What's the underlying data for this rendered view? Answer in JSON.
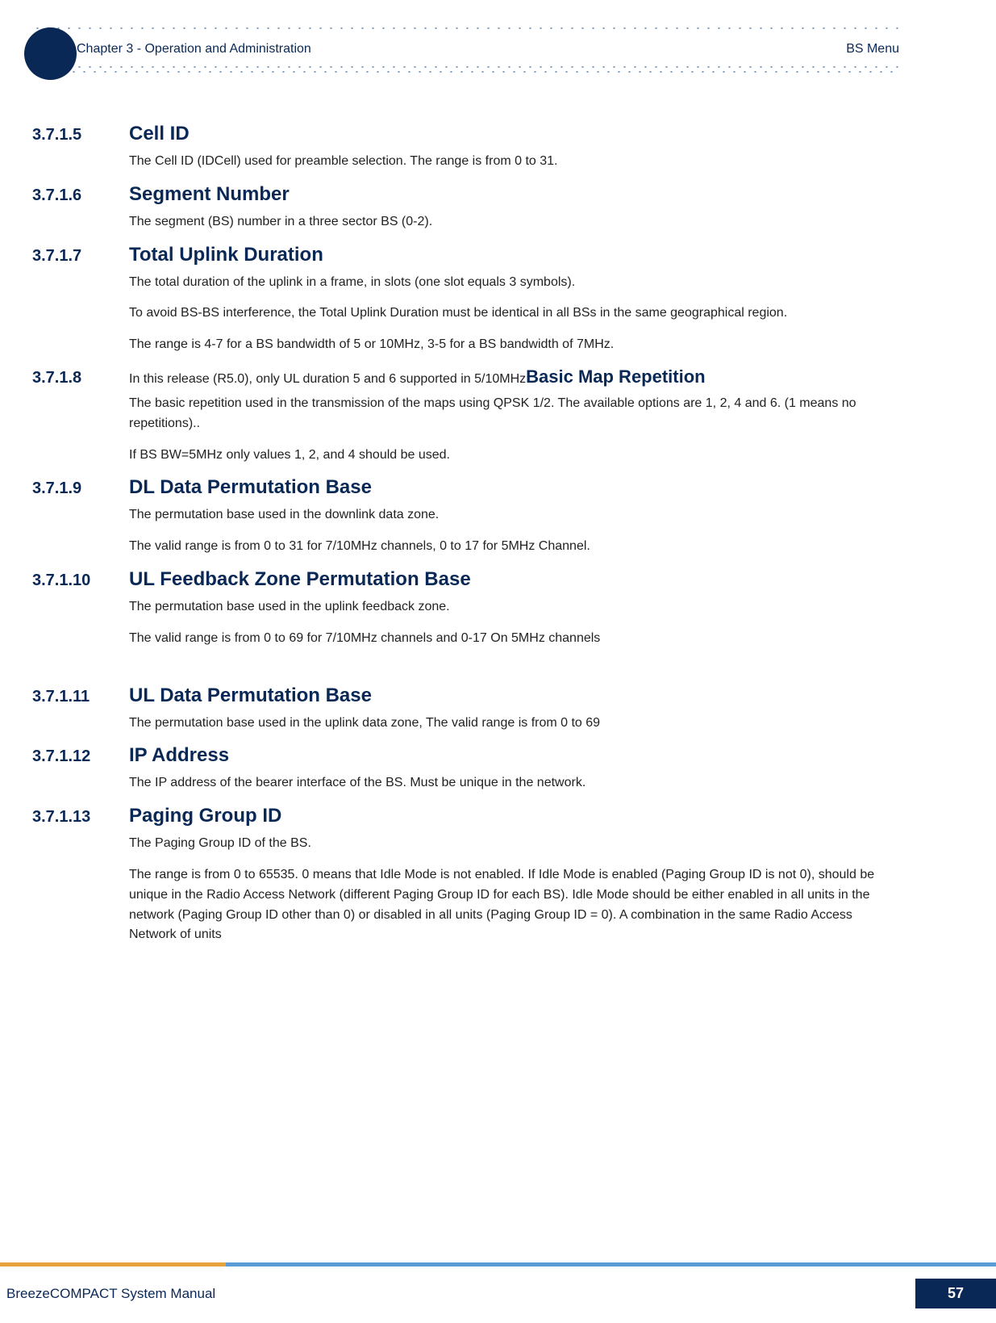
{
  "header": {
    "chapter": "Chapter 3 - Operation and Administration",
    "menu": "BS Menu"
  },
  "sections": {
    "s1": {
      "num": "3.7.1.5",
      "title": "Cell ID",
      "p1": "The Cell ID (IDCell) used for preamble selection. The range is from 0 to 31."
    },
    "s2": {
      "num": "3.7.1.6",
      "title": "Segment Number",
      "p1": "The segment (BS) number in a three sector BS (0-2)."
    },
    "s3": {
      "num": "3.7.1.7",
      "title": "Total Uplink Duration",
      "p1": "The total duration of the uplink in a frame, in slots (one slot equals 3 symbols).",
      "p2": "To avoid BS-BS interference, the Total Uplink Duration must be identical in all BSs in the same geographical region.",
      "p3": "The range is 4-7 for a BS bandwidth of 5 or 10MHz, 3-5 for a BS bandwidth of 7MHz."
    },
    "s4": {
      "num": "3.7.1.8",
      "inline_text": "In this release (R5.0), only UL duration 5 and 6 supported in 5/10MHz",
      "inline_title": "Basic Map Repetition",
      "p1": "The basic repetition used in the transmission of the maps using QPSK 1/2. The available options are 1, 2, 4 and 6. (1 means no repetitions)..",
      "p2": "If BS BW=5MHz only values 1, 2, and 4 should be used."
    },
    "s5": {
      "num": "3.7.1.9",
      "title": "DL Data Permutation Base",
      "p1": "The permutation base used in the downlink data zone.",
      "p2": "The valid range is from 0 to 31 for 7/10MHz channels, 0 to 17 for 5MHz Channel."
    },
    "s6": {
      "num": "3.7.1.10",
      "title": "UL Feedback Zone Permutation Base",
      "p1": "The permutation base used in the uplink feedback zone.",
      "p2": "The valid range is from 0 to 69 for 7/10MHz channels and 0-17 On 5MHz channels"
    },
    "s7": {
      "num": "3.7.1.11",
      "title": "UL Data Permutation Base",
      "p1": "The permutation base used in the uplink data zone, The valid range is from 0 to 69"
    },
    "s8": {
      "num": "3.7.1.12",
      "title": "IP Address",
      "p1": "The IP address of the bearer interface of the BS. Must be unique in the network."
    },
    "s9": {
      "num": "3.7.1.13",
      "title": "Paging Group ID",
      "p1": "The Paging Group ID of the BS.",
      "p2": "The range is from 0 to 65535. 0 means that Idle Mode is not enabled. If Idle Mode is enabled (Paging Group ID is not 0), should be unique in the Radio Access Network (different Paging Group ID for each BS). Idle Mode should be either enabled in all units in the network (Paging Group ID other than 0) or disabled in all units (Paging Group ID = 0). A combination in the same Radio Access Network of units"
    }
  },
  "footer": {
    "title": "BreezeCOMPACT System Manual",
    "page": "57"
  },
  "colors": {
    "brand_dark": "#0a2855",
    "dot": "#7a9ab8",
    "bar_orange": "#e7a13c",
    "bar_blue": "#5b9bd5"
  }
}
